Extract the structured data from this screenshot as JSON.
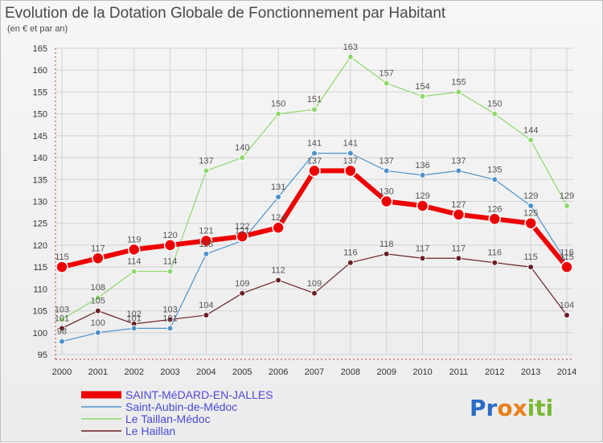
{
  "chart_data": {
    "type": "line",
    "title": "Evolution de la Dotation Globale de Fonctionnement par Habitant",
    "subtitle": "(en € et par an)",
    "categories": [
      "2000",
      "2001",
      "2002",
      "2003",
      "2004",
      "2005",
      "2006",
      "2007",
      "2008",
      "2009",
      "2010",
      "2011",
      "2012",
      "2013",
      "2014"
    ],
    "ylim": [
      95,
      165
    ],
    "yticks": [
      95,
      100,
      105,
      110,
      115,
      120,
      125,
      130,
      135,
      140,
      145,
      150,
      155,
      160,
      165
    ],
    "grid": true,
    "legend_position": "bottom-left",
    "series": [
      {
        "name": "Le Haillan",
        "color": "#6b1f24",
        "width": 1.2,
        "marker_r": 3.5,
        "values": [
          101,
          105,
          102,
          103,
          104,
          109,
          112,
          109,
          116,
          118,
          117,
          117,
          116,
          115,
          104
        ]
      },
      {
        "name": "Le Taillan-Médoc",
        "color": "#8ed86e",
        "width": 1.2,
        "marker_r": 3.5,
        "values": [
          103,
          108,
          114,
          114,
          137,
          140,
          150,
          151,
          163,
          157,
          154,
          155,
          150,
          144,
          129
        ]
      },
      {
        "name": "Saint-Aubin-de-Médoc",
        "color": "#4d92cc",
        "width": 1.2,
        "marker_r": 3.5,
        "values": [
          98,
          100,
          101,
          101,
          118,
          121,
          131,
          141,
          141,
          137,
          136,
          137,
          135,
          129,
          116
        ]
      },
      {
        "name": "SAINT-MéDARD-EN-JALLES",
        "color": "#ee0000",
        "width": 6,
        "marker_r": 7,
        "values": [
          115,
          117,
          119,
          120,
          121,
          122,
          124,
          137,
          137,
          130,
          129,
          127,
          126,
          125,
          115
        ]
      }
    ],
    "legend_order": [
      "SAINT-MéDARD-EN-JALLES",
      "Saint-Aubin-de-Médoc",
      "Le Taillan-Médoc",
      "Le Haillan"
    ]
  },
  "logo": {
    "text": "Proxiti",
    "letters": [
      "P",
      "r",
      "o",
      "x",
      "i",
      "t",
      "i"
    ],
    "colors": [
      "#2b6cc4",
      "#2b6cc4",
      "#e8801a",
      "#e8801a",
      "#7ab834",
      "#7ab834",
      "#7ab834"
    ]
  }
}
